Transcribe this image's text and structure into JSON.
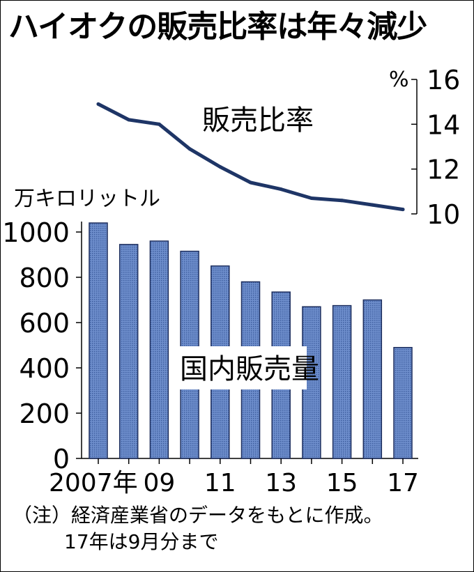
{
  "title": "ハイオクの販売比率は年々減少",
  "notes": [
    "（注）経済産業省のデータをもとに作成。",
    "17年は9月分まで"
  ],
  "colors": {
    "bar_fill": "#6f8fcd",
    "bar_stroke": "#1e2f5e",
    "line": "#1e3566",
    "text": "#000000"
  },
  "chart_data": [
    {
      "type": "bar",
      "label": "国内販売量",
      "ylabel": "万キロリットル",
      "ylim": [
        0,
        1000
      ],
      "yticks": [
        "0",
        "200",
        "400",
        "600",
        "800",
        "1000"
      ],
      "categories": [
        "2007",
        "2008",
        "2009",
        "2010",
        "2011",
        "2012",
        "2013",
        "2014",
        "2015",
        "2016",
        "2017"
      ],
      "xtick_labels": [
        "2007年",
        "",
        "09",
        "",
        "11",
        "",
        "13",
        "",
        "15",
        "",
        "17"
      ],
      "values": [
        1040,
        945,
        960,
        915,
        850,
        780,
        735,
        670,
        675,
        700,
        490
      ]
    },
    {
      "type": "line",
      "label": "販売比率",
      "ylabel": "%",
      "ylim": [
        10,
        16
      ],
      "yticks": [
        "10",
        "12",
        "14",
        "16"
      ],
      "categories": [
        "2007",
        "2008",
        "2009",
        "2010",
        "2011",
        "2012",
        "2013",
        "2014",
        "2015",
        "2016",
        "2017"
      ],
      "values": [
        14.9,
        14.2,
        14.0,
        12.9,
        12.1,
        11.4,
        11.1,
        10.7,
        10.6,
        10.4,
        10.2
      ]
    }
  ]
}
